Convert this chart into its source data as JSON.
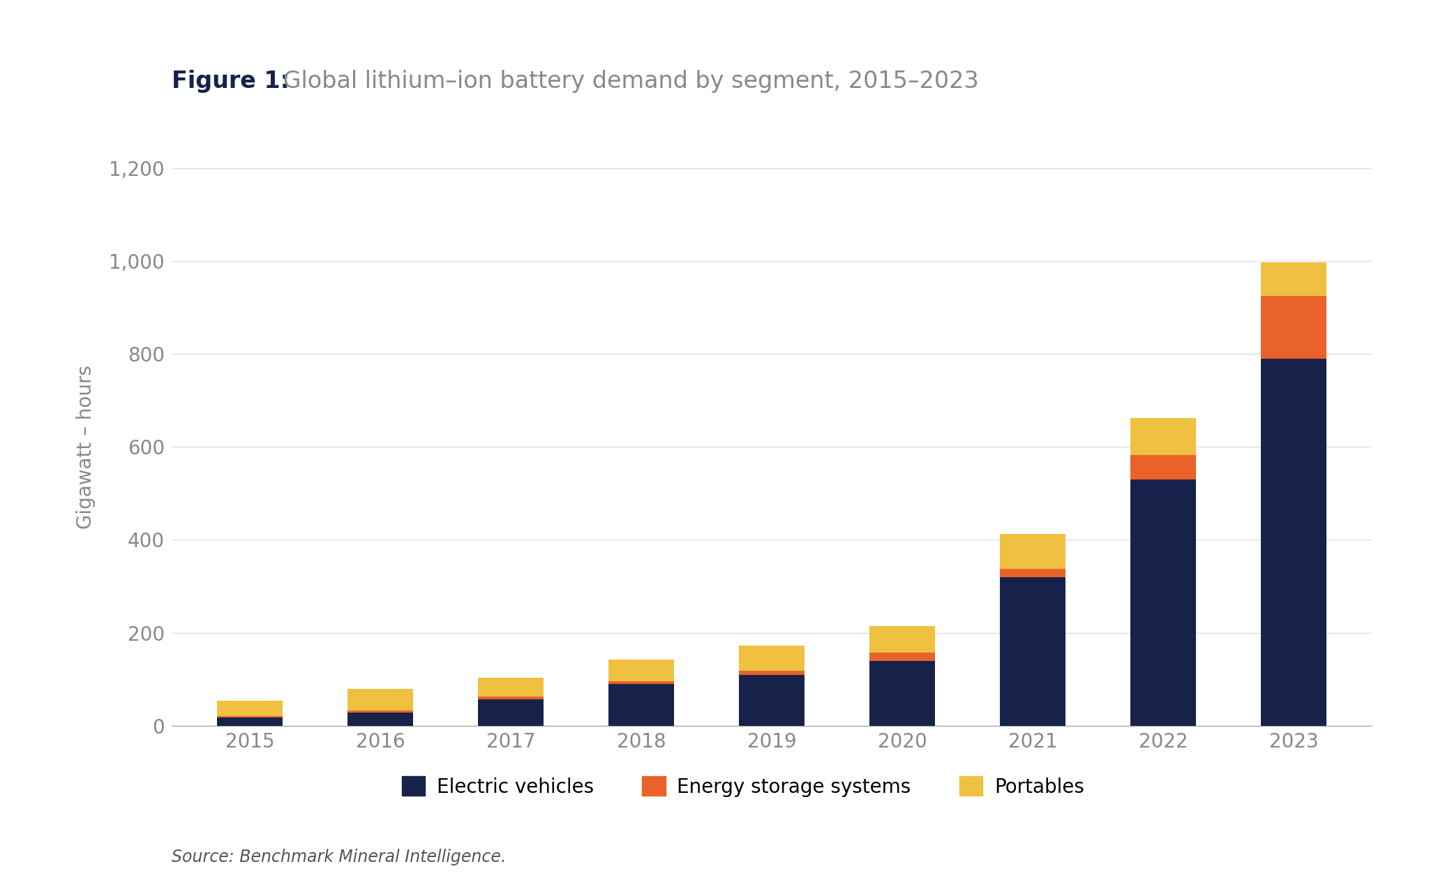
{
  "years": [
    "2015",
    "2016",
    "2017",
    "2018",
    "2019",
    "2020",
    "2021",
    "2022",
    "2023"
  ],
  "ev": [
    18,
    28,
    57,
    90,
    110,
    140,
    320,
    530,
    790
  ],
  "ess": [
    3,
    4,
    5,
    6,
    8,
    18,
    18,
    52,
    135
  ],
  "portables": [
    32,
    48,
    42,
    46,
    55,
    57,
    75,
    80,
    72
  ],
  "ev_color": "#16224a",
  "ess_color": "#e8622a",
  "portables_color": "#f0c040",
  "background_color": "#ffffff",
  "grid_color": "#dddddd",
  "title_bold": "Figure 1:",
  "title_rest": " Global lithium–ion battery demand by segment, 2015–2023",
  "ylabel": "Gigawatt – hours",
  "ylim": [
    0,
    1200
  ],
  "yticks": [
    0,
    200,
    400,
    600,
    800,
    1000,
    1200
  ],
  "source_text": "Source: Benchmark Mineral Intelligence.",
  "legend_labels": [
    "Electric vehicles",
    "Energy storage systems",
    "Portables"
  ],
  "title_color": "#16224a",
  "title_rest_color": "#888888",
  "axis_color": "#888888",
  "source_color": "#555555",
  "title_fontsize": 24,
  "tick_fontsize": 20,
  "ylabel_fontsize": 20,
  "legend_fontsize": 20,
  "source_fontsize": 17,
  "bar_width": 0.5
}
